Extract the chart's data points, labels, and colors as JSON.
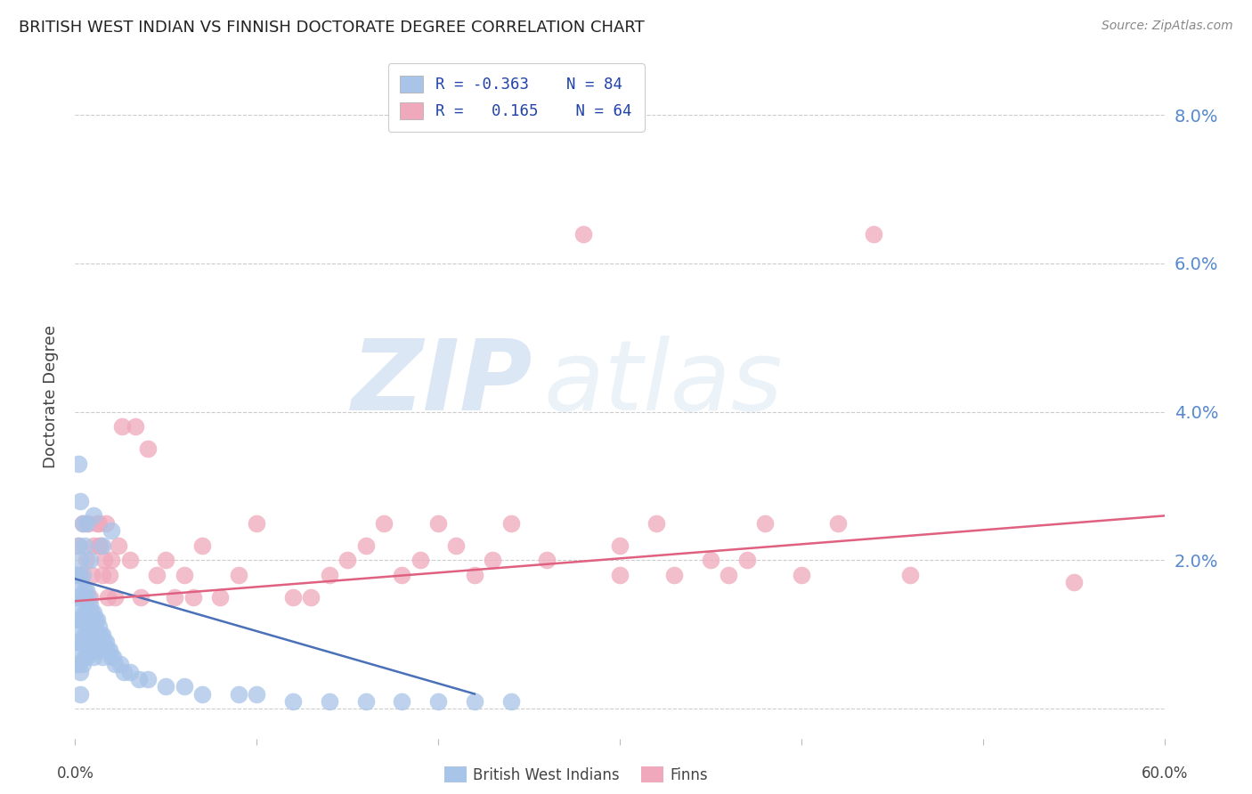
{
  "title": "BRITISH WEST INDIAN VS FINNISH DOCTORATE DEGREE CORRELATION CHART",
  "source": "Source: ZipAtlas.com",
  "ylabel": "Doctorate Degree",
  "blue_color": "#a8c4e8",
  "pink_color": "#f0a8bc",
  "blue_line_color": "#4a70b8",
  "pink_line_color": "#e06080",
  "watermark_zip": "ZIP",
  "watermark_atlas": "atlas",
  "xmin": 0.0,
  "xmax": 0.6,
  "ymin": -0.004,
  "ymax": 0.088,
  "ytick_vals": [
    0.0,
    0.02,
    0.04,
    0.06,
    0.08
  ],
  "ytick_labels": [
    "",
    "2.0%",
    "4.0%",
    "6.0%",
    "8.0%"
  ],
  "blue_line_x0": 0.0,
  "blue_line_x1": 0.22,
  "blue_line_y0": 0.0175,
  "blue_line_y1": 0.002,
  "pink_line_x0": 0.0,
  "pink_line_x1": 0.6,
  "pink_line_y0": 0.0145,
  "pink_line_y1": 0.026,
  "blue_x": [
    0.001,
    0.001,
    0.001,
    0.001,
    0.001,
    0.002,
    0.002,
    0.002,
    0.002,
    0.002,
    0.002,
    0.003,
    0.003,
    0.003,
    0.003,
    0.003,
    0.003,
    0.003,
    0.004,
    0.004,
    0.004,
    0.004,
    0.004,
    0.005,
    0.005,
    0.005,
    0.005,
    0.006,
    0.006,
    0.006,
    0.006,
    0.007,
    0.007,
    0.007,
    0.008,
    0.008,
    0.008,
    0.009,
    0.009,
    0.01,
    0.01,
    0.01,
    0.011,
    0.011,
    0.012,
    0.012,
    0.013,
    0.013,
    0.014,
    0.015,
    0.015,
    0.016,
    0.017,
    0.018,
    0.019,
    0.02,
    0.021,
    0.022,
    0.025,
    0.027,
    0.03,
    0.035,
    0.04,
    0.05,
    0.06,
    0.07,
    0.09,
    0.1,
    0.12,
    0.14,
    0.16,
    0.18,
    0.2,
    0.22,
    0.24,
    0.002,
    0.003,
    0.004,
    0.005,
    0.006,
    0.008,
    0.01,
    0.015,
    0.02
  ],
  "blue_y": [
    0.018,
    0.015,
    0.012,
    0.009,
    0.006,
    0.022,
    0.018,
    0.015,
    0.012,
    0.009,
    0.006,
    0.02,
    0.017,
    0.014,
    0.011,
    0.008,
    0.005,
    0.002,
    0.018,
    0.015,
    0.012,
    0.009,
    0.006,
    0.016,
    0.013,
    0.01,
    0.007,
    0.016,
    0.013,
    0.01,
    0.007,
    0.015,
    0.012,
    0.009,
    0.014,
    0.011,
    0.008,
    0.013,
    0.01,
    0.013,
    0.01,
    0.007,
    0.012,
    0.009,
    0.012,
    0.009,
    0.011,
    0.008,
    0.01,
    0.01,
    0.007,
    0.009,
    0.009,
    0.008,
    0.008,
    0.007,
    0.007,
    0.006,
    0.006,
    0.005,
    0.005,
    0.004,
    0.004,
    0.003,
    0.003,
    0.002,
    0.002,
    0.002,
    0.001,
    0.001,
    0.001,
    0.001,
    0.001,
    0.001,
    0.001,
    0.033,
    0.028,
    0.025,
    0.022,
    0.025,
    0.02,
    0.026,
    0.022,
    0.024
  ],
  "pink_x": [
    0.002,
    0.003,
    0.004,
    0.005,
    0.006,
    0.007,
    0.008,
    0.009,
    0.01,
    0.012,
    0.013,
    0.013,
    0.014,
    0.015,
    0.016,
    0.017,
    0.018,
    0.019,
    0.02,
    0.022,
    0.024,
    0.026,
    0.03,
    0.033,
    0.036,
    0.04,
    0.045,
    0.05,
    0.055,
    0.06,
    0.065,
    0.07,
    0.08,
    0.09,
    0.1,
    0.12,
    0.13,
    0.14,
    0.15,
    0.16,
    0.17,
    0.18,
    0.19,
    0.2,
    0.21,
    0.22,
    0.23,
    0.24,
    0.26,
    0.28,
    0.3,
    0.3,
    0.32,
    0.33,
    0.35,
    0.36,
    0.37,
    0.38,
    0.4,
    0.42,
    0.44,
    0.46,
    0.55
  ],
  "pink_y": [
    0.022,
    0.018,
    0.025,
    0.015,
    0.02,
    0.025,
    0.015,
    0.018,
    0.022,
    0.025,
    0.025,
    0.022,
    0.022,
    0.018,
    0.02,
    0.025,
    0.015,
    0.018,
    0.02,
    0.015,
    0.022,
    0.038,
    0.02,
    0.038,
    0.015,
    0.035,
    0.018,
    0.02,
    0.015,
    0.018,
    0.015,
    0.022,
    0.015,
    0.018,
    0.025,
    0.015,
    0.015,
    0.018,
    0.02,
    0.022,
    0.025,
    0.018,
    0.02,
    0.025,
    0.022,
    0.018,
    0.02,
    0.025,
    0.02,
    0.064,
    0.018,
    0.022,
    0.025,
    0.018,
    0.02,
    0.018,
    0.02,
    0.025,
    0.018,
    0.025,
    0.064,
    0.018,
    0.017
  ]
}
